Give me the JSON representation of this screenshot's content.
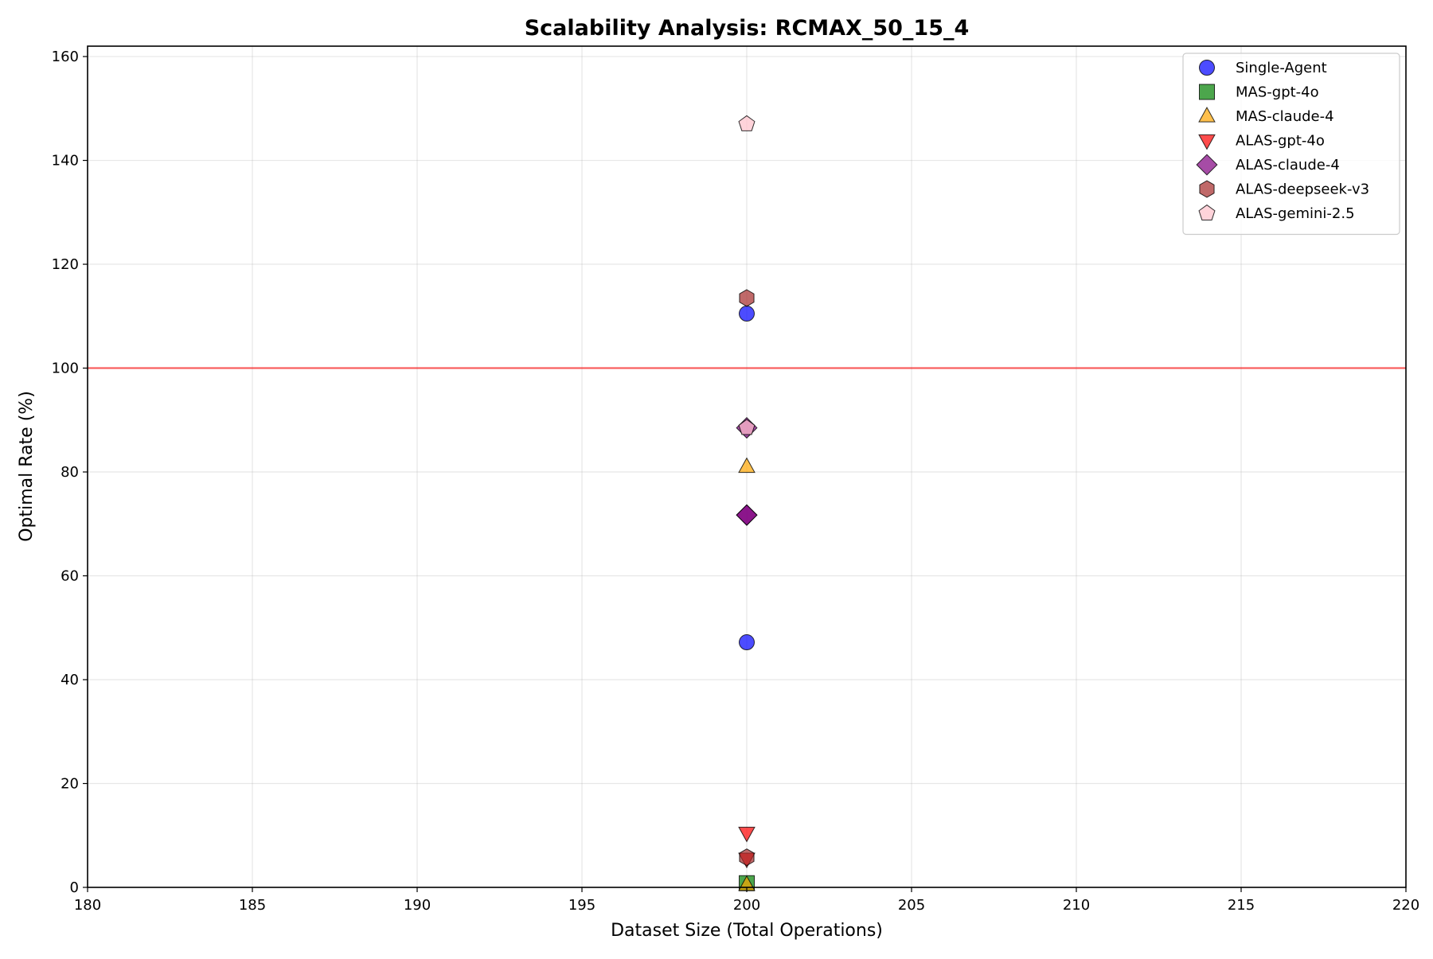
{
  "chart_data": {
    "type": "scatter",
    "title": "Scalability Analysis: RCMAX_50_15_4",
    "xlabel": "Dataset Size (Total Operations)",
    "ylabel": "Optimal Rate (%)",
    "xlim": [
      180,
      220
    ],
    "ylim": [
      0,
      162
    ],
    "xticks": [
      180,
      185,
      190,
      195,
      200,
      205,
      210,
      215,
      220
    ],
    "yticks": [
      0,
      20,
      40,
      60,
      80,
      100,
      120,
      140,
      160
    ],
    "grid": true,
    "legend_position": "top-right",
    "reference_line": {
      "y": 100,
      "color": "#ff0000"
    },
    "series": [
      {
        "name": "Single-Agent",
        "marker": "circle",
        "color": "#0000ff",
        "points": [
          {
            "x": 200,
            "y": 110.5
          },
          {
            "x": 200,
            "y": 47.2
          }
        ]
      },
      {
        "name": "MAS-gpt-4o",
        "marker": "square",
        "color": "#008000",
        "points": [
          {
            "x": 200,
            "y": 0.8
          }
        ]
      },
      {
        "name": "MAS-claude-4",
        "marker": "triangle-up",
        "color": "#ffa500",
        "points": [
          {
            "x": 200,
            "y": 81.0
          },
          {
            "x": 200,
            "y": 0.5
          }
        ]
      },
      {
        "name": "ALAS-gpt-4o",
        "marker": "triangle-down",
        "color": "#ff0000",
        "points": [
          {
            "x": 200,
            "y": 10.5
          },
          {
            "x": 200,
            "y": 5.5
          }
        ]
      },
      {
        "name": "ALAS-claude-4",
        "marker": "diamond",
        "color": "#800080",
        "points": [
          {
            "x": 200,
            "y": 88.5
          },
          {
            "x": 200,
            "y": 71.7
          },
          {
            "x": 200,
            "y": 71.7
          }
        ]
      },
      {
        "name": "ALAS-deepseek-v3",
        "marker": "hexagon",
        "color": "#a52a2a",
        "points": [
          {
            "x": 200,
            "y": 113.5
          },
          {
            "x": 200,
            "y": 5.8
          }
        ]
      },
      {
        "name": "ALAS-gemini-2.5",
        "marker": "pentagon",
        "color": "#ffc0cb",
        "points": [
          {
            "x": 200,
            "y": 147.0
          },
          {
            "x": 200,
            "y": 88.5
          }
        ]
      }
    ]
  }
}
